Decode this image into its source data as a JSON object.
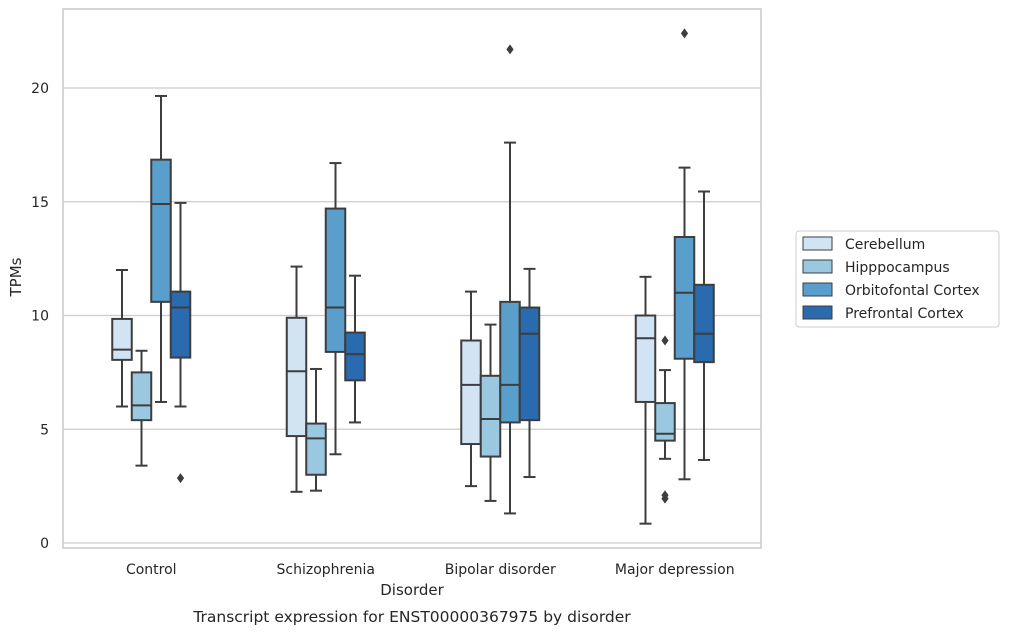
{
  "chart_data": {
    "type": "box",
    "xlabel": "Disorder",
    "ylabel": "TPMs",
    "caption": "Transcript expression for ENST00000367975 by disorder",
    "ylim": [
      -0.2,
      23.5
    ],
    "yticks": [
      "0",
      "5",
      "10",
      "15",
      "20"
    ],
    "grid": "horizontal",
    "legend_position": "right",
    "categories": [
      "Control",
      "Schizophrenia",
      "Bipolar disorder",
      "Major depression"
    ],
    "series": [
      {
        "name": "Cerebellum",
        "color": "#d2e3f3",
        "boxes": [
          {
            "whisker_low": 6.0,
            "q1": 8.05,
            "median": 8.5,
            "q3": 9.85,
            "whisker_high": 12.0,
            "outliers": []
          },
          {
            "whisker_low": 2.25,
            "q1": 4.7,
            "median": 7.55,
            "q3": 9.9,
            "whisker_high": 12.15,
            "outliers": []
          },
          {
            "whisker_low": 2.5,
            "q1": 4.35,
            "median": 6.95,
            "q3": 8.9,
            "whisker_high": 11.05,
            "outliers": []
          },
          {
            "whisker_low": 0.85,
            "q1": 6.2,
            "median": 9.0,
            "q3": 10.0,
            "whisker_high": 11.7,
            "outliers": []
          }
        ]
      },
      {
        "name": "Hipppocampus",
        "color": "#9ac8e0",
        "boxes": [
          {
            "whisker_low": 3.4,
            "q1": 5.4,
            "median": 6.05,
            "q3": 7.5,
            "whisker_high": 8.45,
            "outliers": []
          },
          {
            "whisker_low": 2.3,
            "q1": 3.0,
            "median": 4.6,
            "q3": 5.25,
            "whisker_high": 7.65,
            "outliers": []
          },
          {
            "whisker_low": 1.85,
            "q1": 3.8,
            "median": 5.45,
            "q3": 7.35,
            "whisker_high": 9.6,
            "outliers": []
          },
          {
            "whisker_low": 3.7,
            "q1": 4.5,
            "median": 4.8,
            "q3": 6.15,
            "whisker_high": 7.6,
            "outliers": [
              8.9,
              2.1,
              1.95
            ]
          }
        ]
      },
      {
        "name": "Orbitofontal Cortex",
        "color": "#5a9fcc",
        "boxes": [
          {
            "whisker_low": 6.2,
            "q1": 10.6,
            "median": 14.9,
            "q3": 16.85,
            "whisker_high": 19.65,
            "outliers": []
          },
          {
            "whisker_low": 3.9,
            "q1": 8.4,
            "median": 10.35,
            "q3": 14.7,
            "whisker_high": 16.7,
            "outliers": []
          },
          {
            "whisker_low": 1.3,
            "q1": 5.3,
            "median": 6.95,
            "q3": 10.6,
            "whisker_high": 17.6,
            "outliers": [
              21.7
            ]
          },
          {
            "whisker_low": 2.8,
            "q1": 8.1,
            "median": 11.0,
            "q3": 13.45,
            "whisker_high": 16.5,
            "outliers": [
              22.4
            ]
          }
        ]
      },
      {
        "name": "Prefrontal Cortex",
        "color": "#2a6aae",
        "boxes": [
          {
            "whisker_low": 6.0,
            "q1": 8.15,
            "median": 10.35,
            "q3": 11.05,
            "whisker_high": 14.95,
            "outliers": [
              2.85
            ]
          },
          {
            "whisker_low": 5.3,
            "q1": 7.15,
            "median": 8.3,
            "q3": 9.25,
            "whisker_high": 11.75,
            "outliers": []
          },
          {
            "whisker_low": 2.9,
            "q1": 5.4,
            "median": 9.2,
            "q3": 10.35,
            "whisker_high": 12.05,
            "outliers": []
          },
          {
            "whisker_low": 3.65,
            "q1": 7.95,
            "median": 9.2,
            "q3": 11.35,
            "whisker_high": 15.45,
            "outliers": []
          }
        ]
      }
    ]
  }
}
